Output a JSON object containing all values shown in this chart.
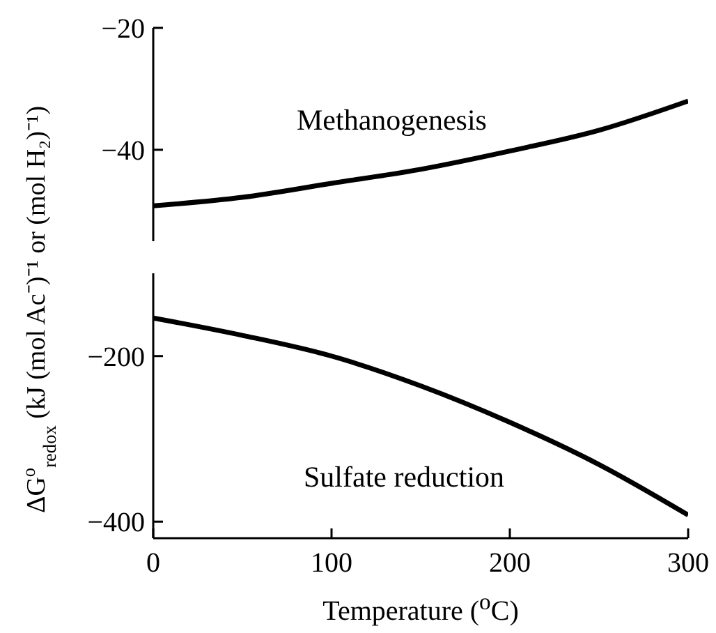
{
  "chart_data": [
    {
      "type": "line",
      "x": [
        0,
        50,
        100,
        150,
        200,
        250,
        300
      ],
      "series": [
        {
          "color": "#000000",
          "values": [
            -49.2,
            -47.8,
            -45.5,
            -43.2,
            -40.2,
            -36.8,
            -32.0
          ]
        }
      ],
      "xlim": [
        0,
        300
      ],
      "xticks": [
        0,
        100,
        200,
        300
      ],
      "ylim": [
        -55,
        -20
      ],
      "yticks": [
        -40,
        -20
      ],
      "tick_labels": "y",
      "annotations": [
        "Methanogenesis"
      ],
      "marker": "none"
    },
    {
      "type": "line",
      "x": [
        0,
        50,
        100,
        150,
        200,
        250,
        300
      ],
      "series": [
        {
          "color": "#000000",
          "values": [
            -154,
            -175,
            -200,
            -236,
            -280,
            -331,
            -392
          ]
        }
      ],
      "xlim": [
        0,
        300
      ],
      "xticks": [
        0,
        100,
        200,
        300
      ],
      "ylim": [
        -420,
        -100
      ],
      "yticks": [
        -400,
        -200
      ],
      "xlabel": "Temperature ($^{o}$C)",
      "ylabel": "ΔG$^{o}$$_{redox}$ (kJ (mol Ac⁻)⁻¹ or (mol H₂)⁻¹)",
      "annotations": [
        "Sulfate reduction"
      ],
      "marker": "none"
    }
  ]
}
